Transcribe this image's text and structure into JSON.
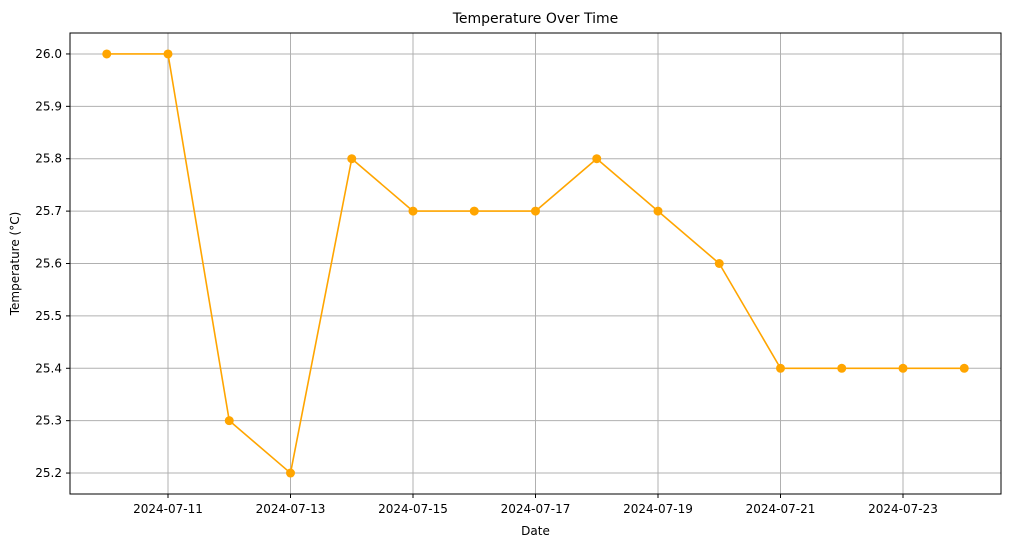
{
  "chart_data": {
    "type": "line",
    "title": "Temperature Over Time",
    "xlabel": "Date",
    "ylabel": "Temperature (°C)",
    "grid": true,
    "x": [
      "2024-07-10",
      "2024-07-11",
      "2024-07-12",
      "2024-07-13",
      "2024-07-14",
      "2024-07-15",
      "2024-07-16",
      "2024-07-17",
      "2024-07-18",
      "2024-07-19",
      "2024-07-20",
      "2024-07-21",
      "2024-07-22",
      "2024-07-23",
      "2024-07-24"
    ],
    "series": [
      {
        "values": [
          26.0,
          26.0,
          25.3,
          25.2,
          25.8,
          25.7,
          25.7,
          25.7,
          25.8,
          25.7,
          25.6,
          25.4,
          25.4,
          25.4,
          25.4
        ],
        "color": "#FFA500",
        "marker": "circle"
      }
    ],
    "xticks": [
      "2024-07-11",
      "2024-07-13",
      "2024-07-15",
      "2024-07-17",
      "2024-07-19",
      "2024-07-21",
      "2024-07-23"
    ],
    "yticks": [
      "25.2",
      "25.3",
      "25.4",
      "25.5",
      "25.6",
      "25.7",
      "25.8",
      "25.9",
      "26.0"
    ],
    "xlim": [
      "2024-07-09T09:36",
      "2024-07-24T14:24"
    ],
    "ylim": [
      25.16,
      26.04
    ]
  }
}
